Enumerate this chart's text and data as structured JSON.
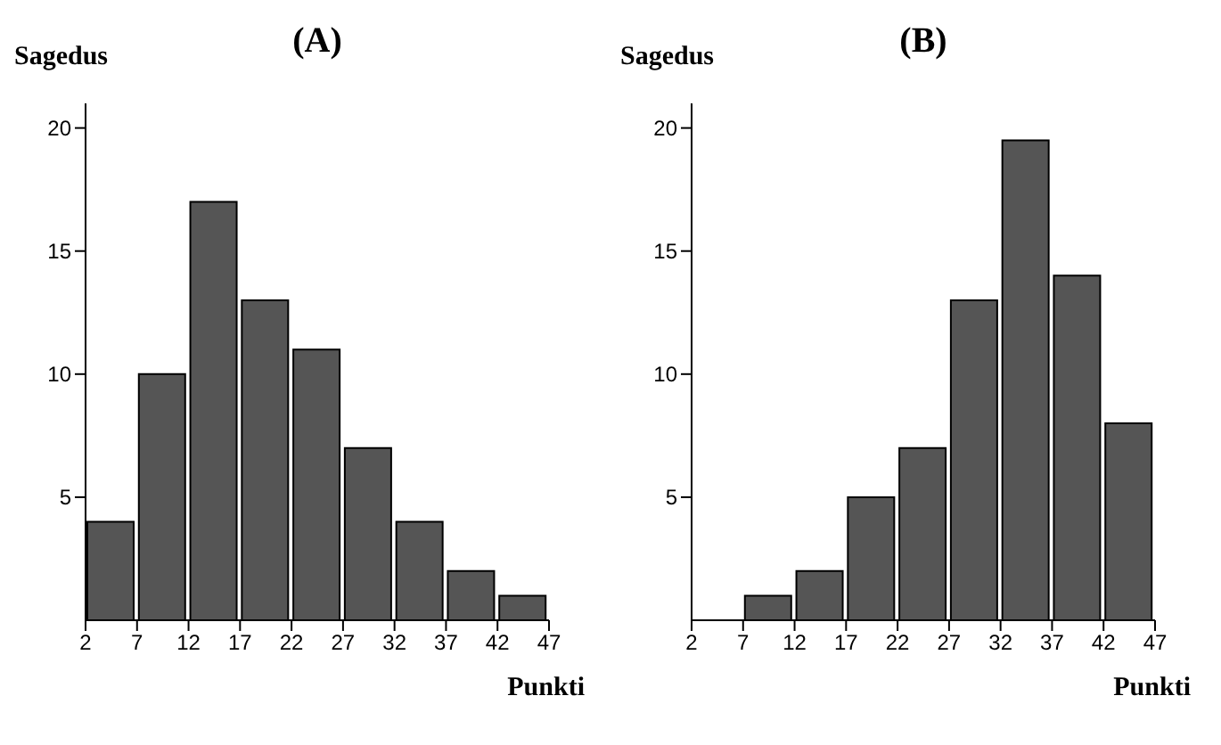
{
  "chart_data": [
    {
      "type": "histogram",
      "title": "(A)",
      "ylabel": "Sagedus",
      "xlabel": "Punkti",
      "bins": [
        2,
        7,
        12,
        17,
        22,
        27,
        32,
        37,
        42,
        47
      ],
      "values": [
        4,
        10,
        17,
        13,
        11,
        7,
        4,
        2,
        1
      ],
      "color": "#555555",
      "xlim": [
        2,
        47
      ],
      "xticks": [
        2,
        7,
        12,
        17,
        22,
        27,
        32,
        37,
        42,
        47
      ],
      "ylim": [
        0,
        21
      ],
      "yticks": [
        5,
        10,
        15,
        20
      ],
      "grid": false
    },
    {
      "type": "histogram",
      "title": "(B)",
      "ylabel": "Sagedus",
      "xlabel": "Punkti",
      "bins": [
        2,
        7,
        12,
        17,
        22,
        27,
        32,
        37,
        42,
        47
      ],
      "values": [
        0,
        1,
        2,
        5,
        7,
        13,
        19.5,
        14,
        8
      ],
      "color": "#555555",
      "xlim": [
        2,
        47
      ],
      "xticks": [
        2,
        7,
        12,
        17,
        22,
        27,
        32,
        37,
        42,
        47
      ],
      "ylim": [
        0,
        21
      ],
      "yticks": [
        5,
        10,
        15,
        20
      ],
      "grid": false
    }
  ]
}
